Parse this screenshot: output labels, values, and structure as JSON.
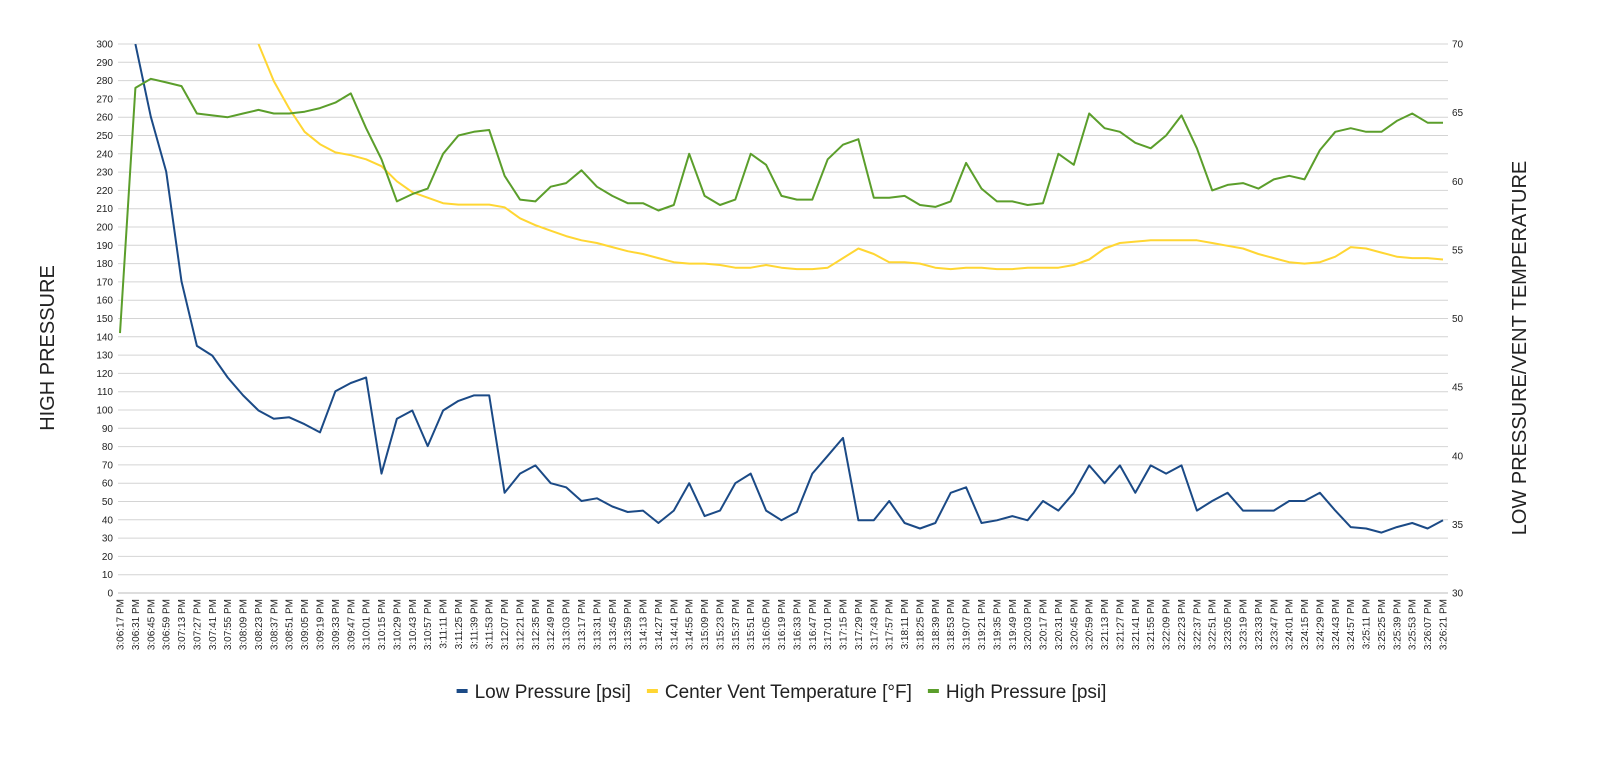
{
  "chart_data": {
    "type": "line",
    "categories": [
      "3:06:17 PM",
      "3:06:31 PM",
      "3:06:45 PM",
      "3:06:59 PM",
      "3:07:13 PM",
      "3:07:27 PM",
      "3:07:41 PM",
      "3:07:55 PM",
      "3:08:09 PM",
      "3:08:23 PM",
      "3:08:37 PM",
      "3:08:51 PM",
      "3:09:05 PM",
      "3:09:19 PM",
      "3:09:33 PM",
      "3:09:47 PM",
      "3:10:01 PM",
      "3:10:15 PM",
      "3:10:29 PM",
      "3:10:43 PM",
      "3:10:57 PM",
      "3:11:11 PM",
      "3:11:25 PM",
      "3:11:39 PM",
      "3:11:53 PM",
      "3:12:07 PM",
      "3:12:21 PM",
      "3:12:35 PM",
      "3:12:49 PM",
      "3:13:03 PM",
      "3:13:17 PM",
      "3:13:31 PM",
      "3:13:45 PM",
      "3:13:59 PM",
      "3:14:13 PM",
      "3:14:27 PM",
      "3:14:41 PM",
      "3:14:55 PM",
      "3:15:09 PM",
      "3:15:23 PM",
      "3:15:37 PM",
      "3:15:51 PM",
      "3:16:05 PM",
      "3:16:19 PM",
      "3:16:33 PM",
      "3:16:47 PM",
      "3:17:01 PM",
      "3:17:15 PM",
      "3:17:29 PM",
      "3:17:43 PM",
      "3:17:57 PM",
      "3:18:11 PM",
      "3:18:25 PM",
      "3:18:39 PM",
      "3:18:53 PM",
      "3:19:07 PM",
      "3:19:21 PM",
      "3:19:35 PM",
      "3:19:49 PM",
      "3:20:03 PM",
      "3:20:17 PM",
      "3:20:31 PM",
      "3:20:45 PM",
      "3:20:59 PM",
      "3:21:13 PM",
      "3:21:27 PM",
      "3:21:41 PM",
      "3:21:55 PM",
      "3:22:09 PM",
      "3:22:23 PM",
      "3:22:37 PM",
      "3:22:51 PM",
      "3:23:05 PM",
      "3:23:19 PM",
      "3:23:33 PM",
      "3:23:47 PM",
      "3:24:01 PM",
      "3:24:15 PM",
      "3:24:29 PM",
      "3:24:43 PM",
      "3:24:57 PM",
      "3:25:11 PM",
      "3:25:25 PM",
      "3:25:39 PM",
      "3:25:53 PM",
      "3:26:07 PM",
      "3:26:21 PM"
    ],
    "series": [
      {
        "name": "Low Pressure [psi]",
        "color": "#1b4a86",
        "axis": "y2",
        "values": [
          null,
          70,
          64.7,
          60.7,
          52.7,
          48.0,
          47.3,
          45.7,
          44.4,
          43.3,
          42.7,
          42.8,
          42.3,
          41.7,
          44.7,
          45.3,
          45.7,
          38.7,
          42.7,
          43.3,
          40.7,
          43.3,
          44.0,
          44.4,
          44.4,
          37.3,
          38.7,
          39.3,
          38.0,
          37.7,
          36.7,
          36.9,
          36.3,
          35.9,
          36.0,
          35.1,
          36.0,
          38.0,
          35.6,
          36.0,
          38.0,
          38.7,
          36.0,
          35.3,
          35.9,
          38.7,
          40.0,
          41.3,
          35.3,
          35.3,
          36.7,
          35.1,
          34.7,
          35.1,
          37.3,
          37.7,
          35.1,
          35.3,
          35.6,
          35.3,
          36.7,
          36.0,
          37.3,
          39.3,
          38.0,
          39.3,
          37.3,
          39.3,
          38.7,
          39.3,
          36.0,
          36.7,
          37.3,
          36.0,
          36.0,
          36.0,
          36.7,
          36.7,
          37.3,
          36.0,
          34.8,
          34.7,
          34.4,
          34.8,
          35.1,
          34.7,
          35.3
        ]
      },
      {
        "name": "Center Vent Temperature [°F]",
        "color": "#ffd633",
        "axis": "y2",
        "values": [
          null,
          null,
          null,
          null,
          null,
          null,
          null,
          null,
          null,
          70,
          67.3,
          65.3,
          63.6,
          62.7,
          62.1,
          61.9,
          61.6,
          61.1,
          60.0,
          59.2,
          58.8,
          58.4,
          58.3,
          58.3,
          58.3,
          58.1,
          57.3,
          56.8,
          56.4,
          56.0,
          55.7,
          55.5,
          55.2,
          54.9,
          54.7,
          54.4,
          54.1,
          54.0,
          54.0,
          53.9,
          53.7,
          53.7,
          53.9,
          53.7,
          53.6,
          53.6,
          53.7,
          54.4,
          55.1,
          54.7,
          54.1,
          54.1,
          54.0,
          53.7,
          53.6,
          53.7,
          53.7,
          53.6,
          53.6,
          53.7,
          53.7,
          53.7,
          53.9,
          54.3,
          55.1,
          55.5,
          55.6,
          55.7,
          55.7,
          55.7,
          55.7,
          55.5,
          55.3,
          55.1,
          54.7,
          54.4,
          54.1,
          54.0,
          54.1,
          54.5,
          55.2,
          55.1,
          54.8,
          54.5,
          54.4,
          54.4,
          54.3
        ]
      },
      {
        "name": "High Pressure [psi]",
        "color": "#5b9e2b",
        "values": [
          142,
          276,
          281,
          279,
          277,
          262,
          261,
          260,
          262,
          264,
          262,
          262,
          263,
          265,
          268,
          273,
          254,
          237,
          214,
          218,
          221,
          240,
          250,
          252,
          253,
          228,
          215,
          214,
          222,
          224,
          231,
          222,
          217,
          213,
          213,
          209,
          212,
          240,
          217,
          212,
          215,
          240,
          234,
          217,
          215,
          215,
          237,
          245,
          248,
          216,
          216,
          217,
          212,
          211,
          214,
          235,
          221,
          214,
          214,
          212,
          213,
          240,
          234,
          262,
          254,
          252,
          246,
          243,
          250,
          261,
          243,
          220,
          223,
          224,
          221,
          226,
          228,
          226,
          242,
          252,
          254,
          252,
          252,
          258,
          262,
          257,
          257
        ]
      }
    ],
    "y_label": "HIGH PRESSURE",
    "y2_label": "LOW PRESSURE/VENT TEMPERATURE",
    "ylim": [
      0,
      300
    ],
    "yticks": [
      0,
      10,
      20,
      30,
      40,
      50,
      60,
      70,
      80,
      90,
      100,
      110,
      120,
      130,
      140,
      150,
      160,
      170,
      180,
      190,
      200,
      210,
      220,
      230,
      240,
      250,
      260,
      270,
      280,
      290,
      300
    ],
    "y2lim": [
      30,
      70
    ],
    "y2ticks": [
      30,
      35,
      40,
      45,
      50,
      55,
      60,
      65,
      70
    ],
    "grid": true,
    "legend": "bottom"
  }
}
